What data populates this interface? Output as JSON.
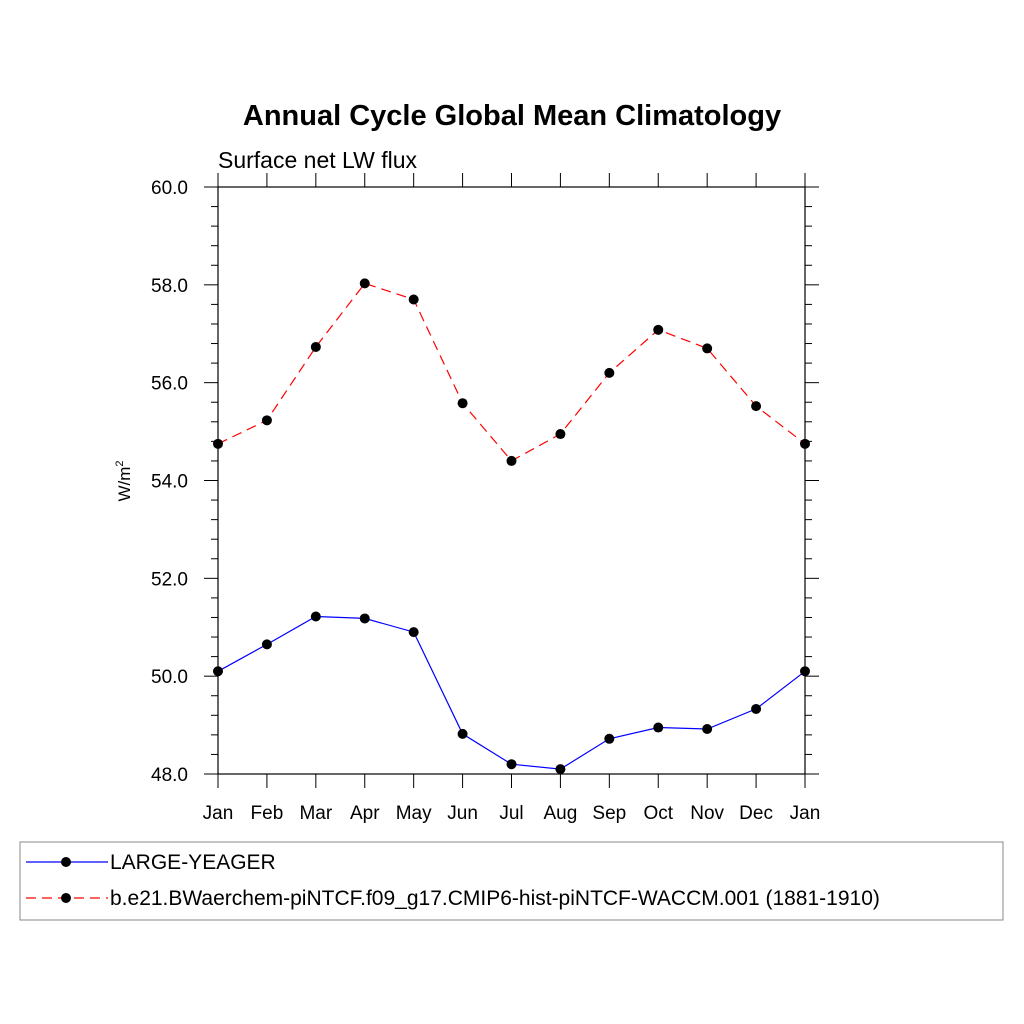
{
  "chart_data": {
    "type": "line",
    "title": "Annual Cycle Global Mean Climatology",
    "subtitle": "Surface net LW flux",
    "xlabel": "",
    "ylabel": "W/m",
    "ylabel_superscript": "2",
    "categories": [
      "Jan",
      "Feb",
      "Mar",
      "Apr",
      "May",
      "Jun",
      "Jul",
      "Aug",
      "Sep",
      "Oct",
      "Nov",
      "Dec",
      "Jan"
    ],
    "ylim": [
      48.0,
      60.0
    ],
    "yticks": [
      "48.0",
      "50.0",
      "52.0",
      "54.0",
      "56.0",
      "58.0",
      "60.0"
    ],
    "grid": false,
    "legend_position": "bottom",
    "series": [
      {
        "name": "LARGE-YEAGER",
        "color": "#0000ff",
        "line_style": "solid",
        "marker": "filled-circle",
        "values": [
          50.1,
          50.65,
          51.22,
          51.18,
          50.9,
          48.82,
          48.2,
          48.1,
          48.72,
          48.95,
          48.92,
          49.33,
          50.1
        ]
      },
      {
        "name": "b.e21.BWaerchem-piNTCF.f09_g17.CMIP6-hist-piNTCF-WACCM.001 (1881-1910)",
        "color": "#ff0000",
        "line_style": "dashed",
        "marker": "filled-circle",
        "values": [
          54.75,
          55.23,
          56.73,
          58.03,
          57.7,
          55.58,
          54.4,
          54.95,
          56.2,
          57.08,
          56.7,
          55.52,
          54.75
        ]
      }
    ]
  }
}
